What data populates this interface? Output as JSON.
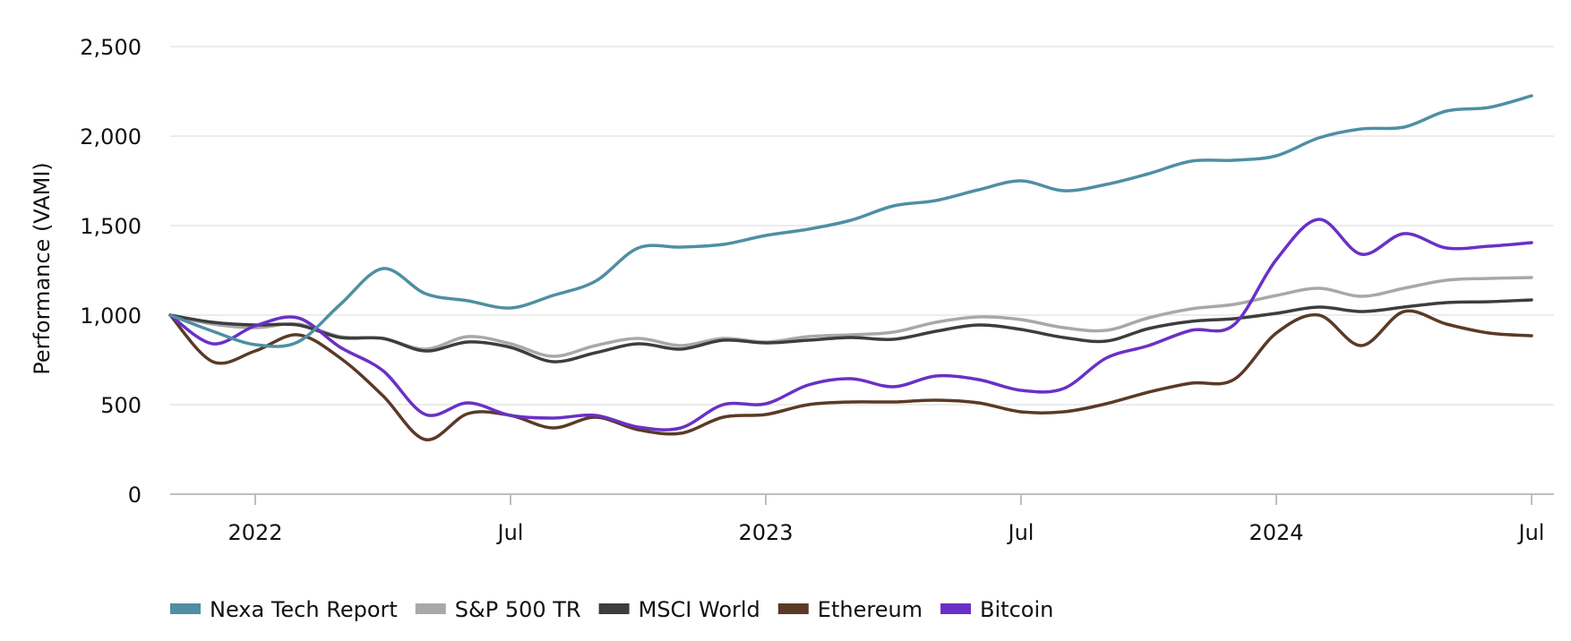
{
  "chart_data": {
    "type": "line",
    "title": "",
    "xlabel": "",
    "ylabel": "Performance (VAMI)",
    "ylim": [
      0,
      2500
    ],
    "yticks": [
      0,
      500,
      1000,
      1500,
      2000,
      2500
    ],
    "ytick_labels": [
      "0",
      "500",
      "1,000",
      "1,500",
      "2,000",
      "2,500"
    ],
    "xlim": [
      "2021-11",
      "2024-07"
    ],
    "xticks": [
      {
        "date": "2022-01",
        "label": "2022"
      },
      {
        "date": "2022-07",
        "label": "Jul"
      },
      {
        "date": "2023-01",
        "label": "2023"
      },
      {
        "date": "2023-07",
        "label": "Jul"
      },
      {
        "date": "2024-01",
        "label": "2024"
      },
      {
        "date": "2024-07",
        "label": "Jul"
      }
    ],
    "grid": true,
    "legend_position": "bottom-left",
    "x": [
      "2021-11",
      "2021-12",
      "2022-01",
      "2022-02",
      "2022-03",
      "2022-04",
      "2022-05",
      "2022-06",
      "2022-07",
      "2022-08",
      "2022-09",
      "2022-10",
      "2022-11",
      "2022-12",
      "2023-01",
      "2023-02",
      "2023-03",
      "2023-04",
      "2023-05",
      "2023-06",
      "2023-07",
      "2023-08",
      "2023-09",
      "2023-10",
      "2023-11",
      "2023-12",
      "2024-01",
      "2024-02",
      "2024-03",
      "2024-04",
      "2024-05",
      "2024-06",
      "2024-07"
    ],
    "series": [
      {
        "name": "Nexa Tech Report",
        "color": "#4e8fa3",
        "values": [
          1000,
          910,
          835,
          850,
          1060,
          1260,
          1120,
          1080,
          1040,
          1110,
          1190,
          1375,
          1380,
          1395,
          1445,
          1480,
          1530,
          1610,
          1640,
          1700,
          1750,
          1695,
          1730,
          1790,
          1860,
          1865,
          1890,
          1990,
          2040,
          2050,
          2140,
          2160,
          2225
        ]
      },
      {
        "name": "S&P 500 TR",
        "color": "#a8a8a8",
        "values": [
          1000,
          950,
          930,
          950,
          880,
          870,
          810,
          880,
          840,
          770,
          830,
          870,
          830,
          870,
          850,
          880,
          890,
          905,
          960,
          990,
          975,
          930,
          915,
          985,
          1035,
          1060,
          1110,
          1150,
          1105,
          1150,
          1195,
          1205,
          1210
        ]
      },
      {
        "name": "MSCI World",
        "color": "#3d3d3d",
        "values": [
          1000,
          960,
          945,
          945,
          875,
          870,
          800,
          850,
          820,
          740,
          790,
          840,
          810,
          860,
          845,
          860,
          875,
          865,
          910,
          945,
          920,
          875,
          855,
          925,
          965,
          980,
          1010,
          1045,
          1020,
          1045,
          1070,
          1075,
          1085
        ]
      },
      {
        "name": "Ethereum",
        "color": "#5b3a26",
        "values": [
          1000,
          740,
          800,
          890,
          760,
          550,
          305,
          450,
          440,
          370,
          430,
          360,
          340,
          430,
          445,
          500,
          515,
          515,
          525,
          510,
          460,
          460,
          505,
          570,
          620,
          640,
          900,
          1000,
          830,
          1020,
          950,
          900,
          885
        ]
      },
      {
        "name": "Bitcoin",
        "color": "#6a30c6",
        "values": [
          1000,
          840,
          940,
          985,
          820,
          690,
          445,
          510,
          440,
          425,
          440,
          375,
          370,
          500,
          505,
          610,
          645,
          600,
          660,
          640,
          580,
          590,
          760,
          830,
          915,
          945,
          1310,
          1535,
          1340,
          1455,
          1375,
          1385,
          1405
        ]
      }
    ]
  }
}
